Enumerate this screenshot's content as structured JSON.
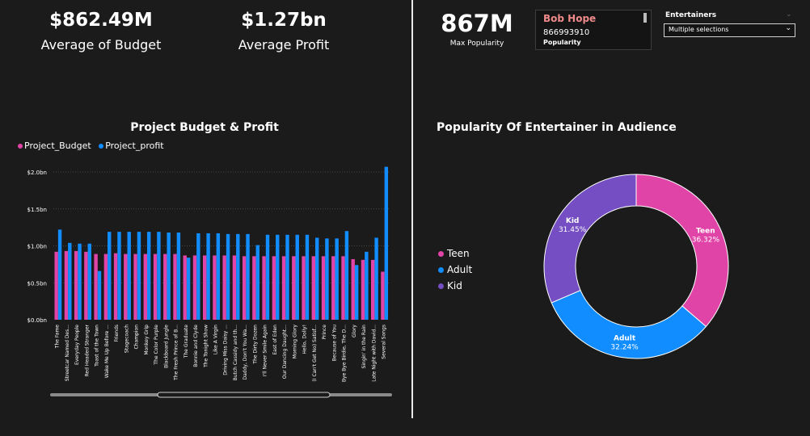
{
  "kpis": [
    {
      "value": "$862.49M",
      "label": "Average of Budget"
    },
    {
      "value": "$1.27bn",
      "label": "Average Profit"
    }
  ],
  "max_popularity": {
    "value": "867M",
    "label": "Max Popularity"
  },
  "card": {
    "name": "Bob Hope",
    "number": "866993910",
    "caption": "Popularity"
  },
  "slicer": {
    "title": "Entertainers",
    "selected": "Multiple selections"
  },
  "colors": {
    "budget": "#e044a7",
    "profit": "#118dff",
    "teen": "#e044a7",
    "adult": "#118dff",
    "kid": "#744ec2"
  },
  "chart_data": [
    {
      "type": "bar",
      "title": "Project Budget & Profit",
      "legend_position": "top-left",
      "y_ticks": [
        "$0.0bn",
        "$0.5bn",
        "$1.0bn",
        "$1.5bn",
        "$2.0bn"
      ],
      "ylim": [
        0,
        2.0
      ],
      "categories": [
        "The Fame",
        "Streetcar Named Des...",
        "Everyday People",
        "Red Headed Stranger",
        "Toast of the Town",
        "Wake Me Up Before ...",
        "Friends",
        "Stagecoach",
        "Champion",
        "Monkey Grip",
        "The Color Purple",
        "Blackboard Jungle",
        "The Fresh Prince of B...",
        "The Graduate",
        "Bonnie and Clyde",
        "The Tonight Show",
        "Like A Virgin",
        "Driving Miss Daisy ...",
        "Butch Cassidy and th...",
        "Daddy, Don't You Wa...",
        "The Dirty Dozen",
        "I'll Never Smile Again",
        "East of Eden",
        "Our Dancing Daught...",
        "Morning Glory",
        "Hello, Dolly!",
        "(I Can't Get No) Satisf...",
        "Prince",
        "Because of You",
        "Bye Bye Birdie, The D...",
        "Glory",
        "Singin' in the Rain",
        "Late Night with David...",
        "Several Songs"
      ],
      "series": [
        {
          "name": "Project_Budget",
          "values": [
            0.92,
            0.93,
            0.93,
            0.92,
            0.89,
            0.89,
            0.9,
            0.89,
            0.89,
            0.89,
            0.89,
            0.89,
            0.89,
            0.87,
            0.87,
            0.87,
            0.87,
            0.87,
            0.87,
            0.86,
            0.86,
            0.86,
            0.86,
            0.86,
            0.86,
            0.86,
            0.86,
            0.86,
            0.86,
            0.86,
            0.82,
            0.81,
            0.81,
            0.65
          ]
        },
        {
          "name": "Project_profit",
          "values": [
            1.22,
            1.04,
            1.03,
            1.03,
            0.66,
            1.19,
            1.19,
            1.19,
            1.19,
            1.19,
            1.19,
            1.18,
            1.18,
            0.84,
            1.17,
            1.17,
            1.17,
            1.16,
            1.16,
            1.16,
            1.01,
            1.15,
            1.15,
            1.15,
            1.15,
            1.15,
            1.11,
            1.1,
            1.1,
            1.2,
            0.74,
            0.92,
            1.11,
            2.07
          ]
        }
      ]
    },
    {
      "type": "pie",
      "title": "Popularity Of Entertainer in Audience",
      "legend_position": "left",
      "slices": [
        {
          "label": "Teen",
          "value": 36.32,
          "text": "36.32%"
        },
        {
          "label": "Adult",
          "value": 32.24,
          "text": "32.24%"
        },
        {
          "label": "Kid",
          "value": 31.45,
          "text": "31.45%"
        }
      ]
    }
  ]
}
